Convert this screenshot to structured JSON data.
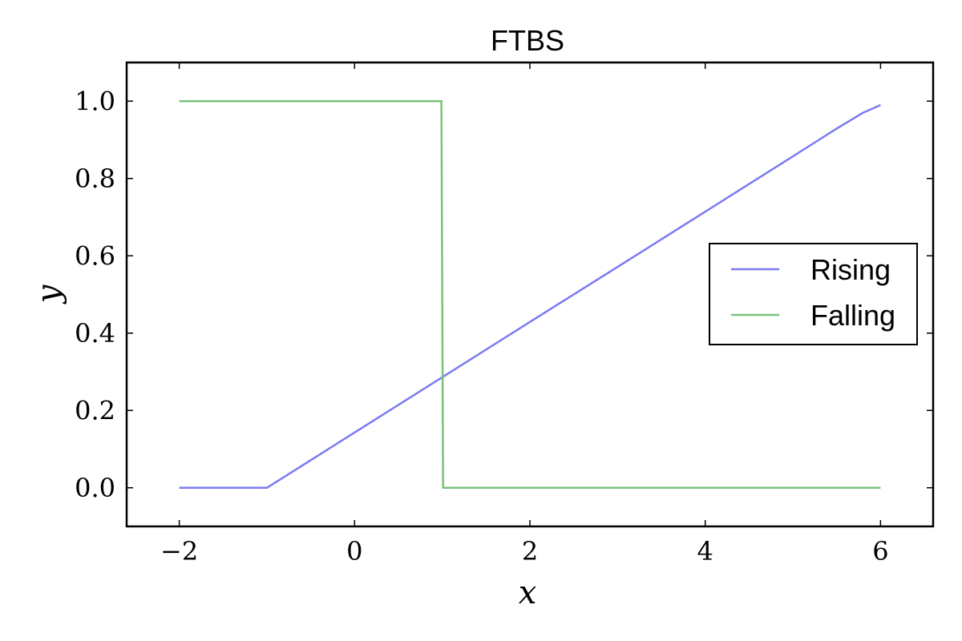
{
  "chart_data": {
    "type": "line",
    "title": "FTBS",
    "xlabel": "x",
    "ylabel": "y",
    "xlim": [
      -2.6,
      6.6
    ],
    "ylim": [
      -0.1,
      1.1
    ],
    "xticks": [
      -2,
      0,
      2,
      4,
      6
    ],
    "xtick_labels": [
      "−2",
      "0",
      "2",
      "4",
      "6"
    ],
    "yticks": [
      0.0,
      0.2,
      0.4,
      0.6,
      0.8,
      1.0
    ],
    "ytick_labels": [
      "0.0",
      "0.2",
      "0.4",
      "0.6",
      "0.8",
      "1.0"
    ],
    "grid": false,
    "legend_position": "center-right",
    "series": [
      {
        "name": "Rising",
        "color": "#7b7bf2",
        "x": [
          -2,
          -1,
          0,
          1,
          2,
          3,
          4,
          5,
          5.5,
          5.8,
          6
        ],
        "y": [
          0.0,
          0.0,
          0.143,
          0.286,
          0.429,
          0.571,
          0.714,
          0.857,
          0.929,
          0.97,
          0.99
        ]
      },
      {
        "name": "Falling",
        "color": "#7bc17b",
        "x": [
          -2,
          0.99,
          1.01,
          6
        ],
        "y": [
          1.0,
          1.0,
          0.0,
          0.0
        ]
      }
    ]
  }
}
